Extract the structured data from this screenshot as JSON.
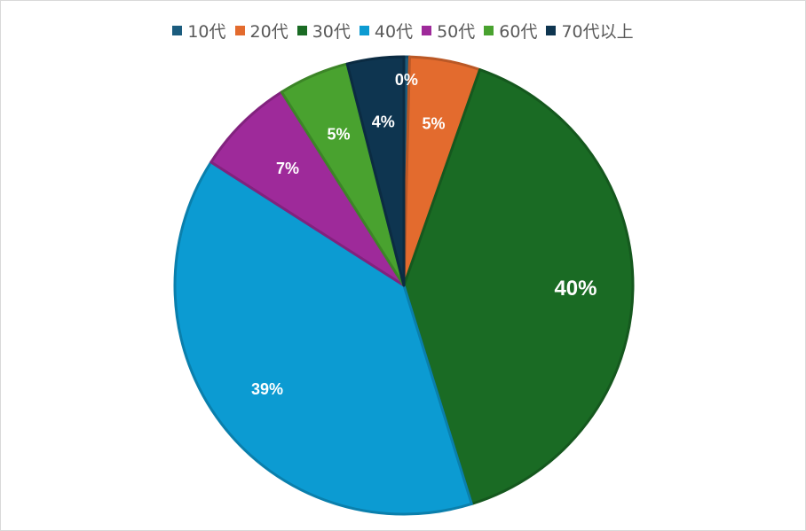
{
  "chart_data": {
    "type": "pie",
    "title": "",
    "categories": [
      "10代",
      "20代",
      "30代",
      "40代",
      "50代",
      "60代",
      "70代以上"
    ],
    "values": [
      0.4,
      5,
      40,
      39,
      7,
      5,
      4
    ],
    "data_labels": [
      "0%",
      "5%",
      "40%",
      "39%",
      "7%",
      "5%",
      "4%"
    ],
    "colors": [
      "#1B5C7E",
      "#E36B2E",
      "#1A6B24",
      "#0C9BD2",
      "#9E2A9A",
      "#49A22F",
      "#0E3550"
    ],
    "legend": "top",
    "start_angle_deg": 0,
    "direction": "clockwise"
  }
}
